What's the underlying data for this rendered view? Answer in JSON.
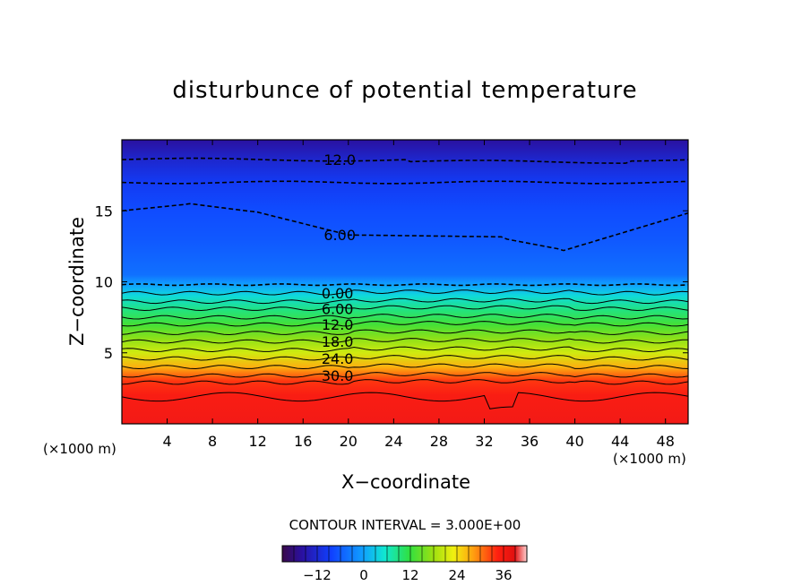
{
  "chart_data": {
    "type": "heatmap",
    "title": "disturbunce of potential temperature",
    "xlabel": "X−coordinate",
    "ylabel": "Z−coordinate",
    "x_unit": "(×1000 m)",
    "y_unit": "(×1000 m)",
    "x_ticks": [
      "4",
      "8",
      "12",
      "16",
      "20",
      "24",
      "28",
      "32",
      "36",
      "40",
      "44",
      "48"
    ],
    "y_ticks": [
      "5",
      "10",
      "15"
    ],
    "xlim": [
      0,
      50
    ],
    "ylim": [
      0,
      20
    ],
    "contour_interval_text": "CONTOUR INTERVAL = 3.000E+00",
    "contour_labels": [
      {
        "text": "12.0",
        "x": 17.5,
        "z": 18.6
      },
      {
        "text": "6.00",
        "x": 17.5,
        "z": 13.3
      },
      {
        "text": "0.00",
        "x": 17.3,
        "z": 9.2
      },
      {
        "text": "6.00",
        "x": 17.3,
        "z": 8.1
      },
      {
        "text": "12.0",
        "x": 17.3,
        "z": 7.0
      },
      {
        "text": "18.0",
        "x": 17.3,
        "z": 5.8
      },
      {
        "text": "24.0",
        "x": 17.3,
        "z": 4.6
      },
      {
        "text": "30.0",
        "x": 17.3,
        "z": 3.4
      }
    ],
    "colorbar": {
      "ticks": [
        "−12",
        "0",
        "12",
        "24",
        "36"
      ],
      "tick_values": [
        -12,
        0,
        12,
        24,
        36
      ],
      "range": [
        -21,
        42
      ]
    },
    "field_profile": {
      "z": [
        0,
        2,
        3,
        4,
        5,
        6,
        7,
        8,
        9,
        9.8,
        10.5,
        13,
        15,
        17,
        18.5,
        20
      ],
      "theta": [
        38,
        36,
        33,
        27,
        21,
        17,
        13,
        9,
        4,
        0,
        -4,
        -6,
        -7,
        -9,
        -12,
        -16
      ]
    }
  }
}
